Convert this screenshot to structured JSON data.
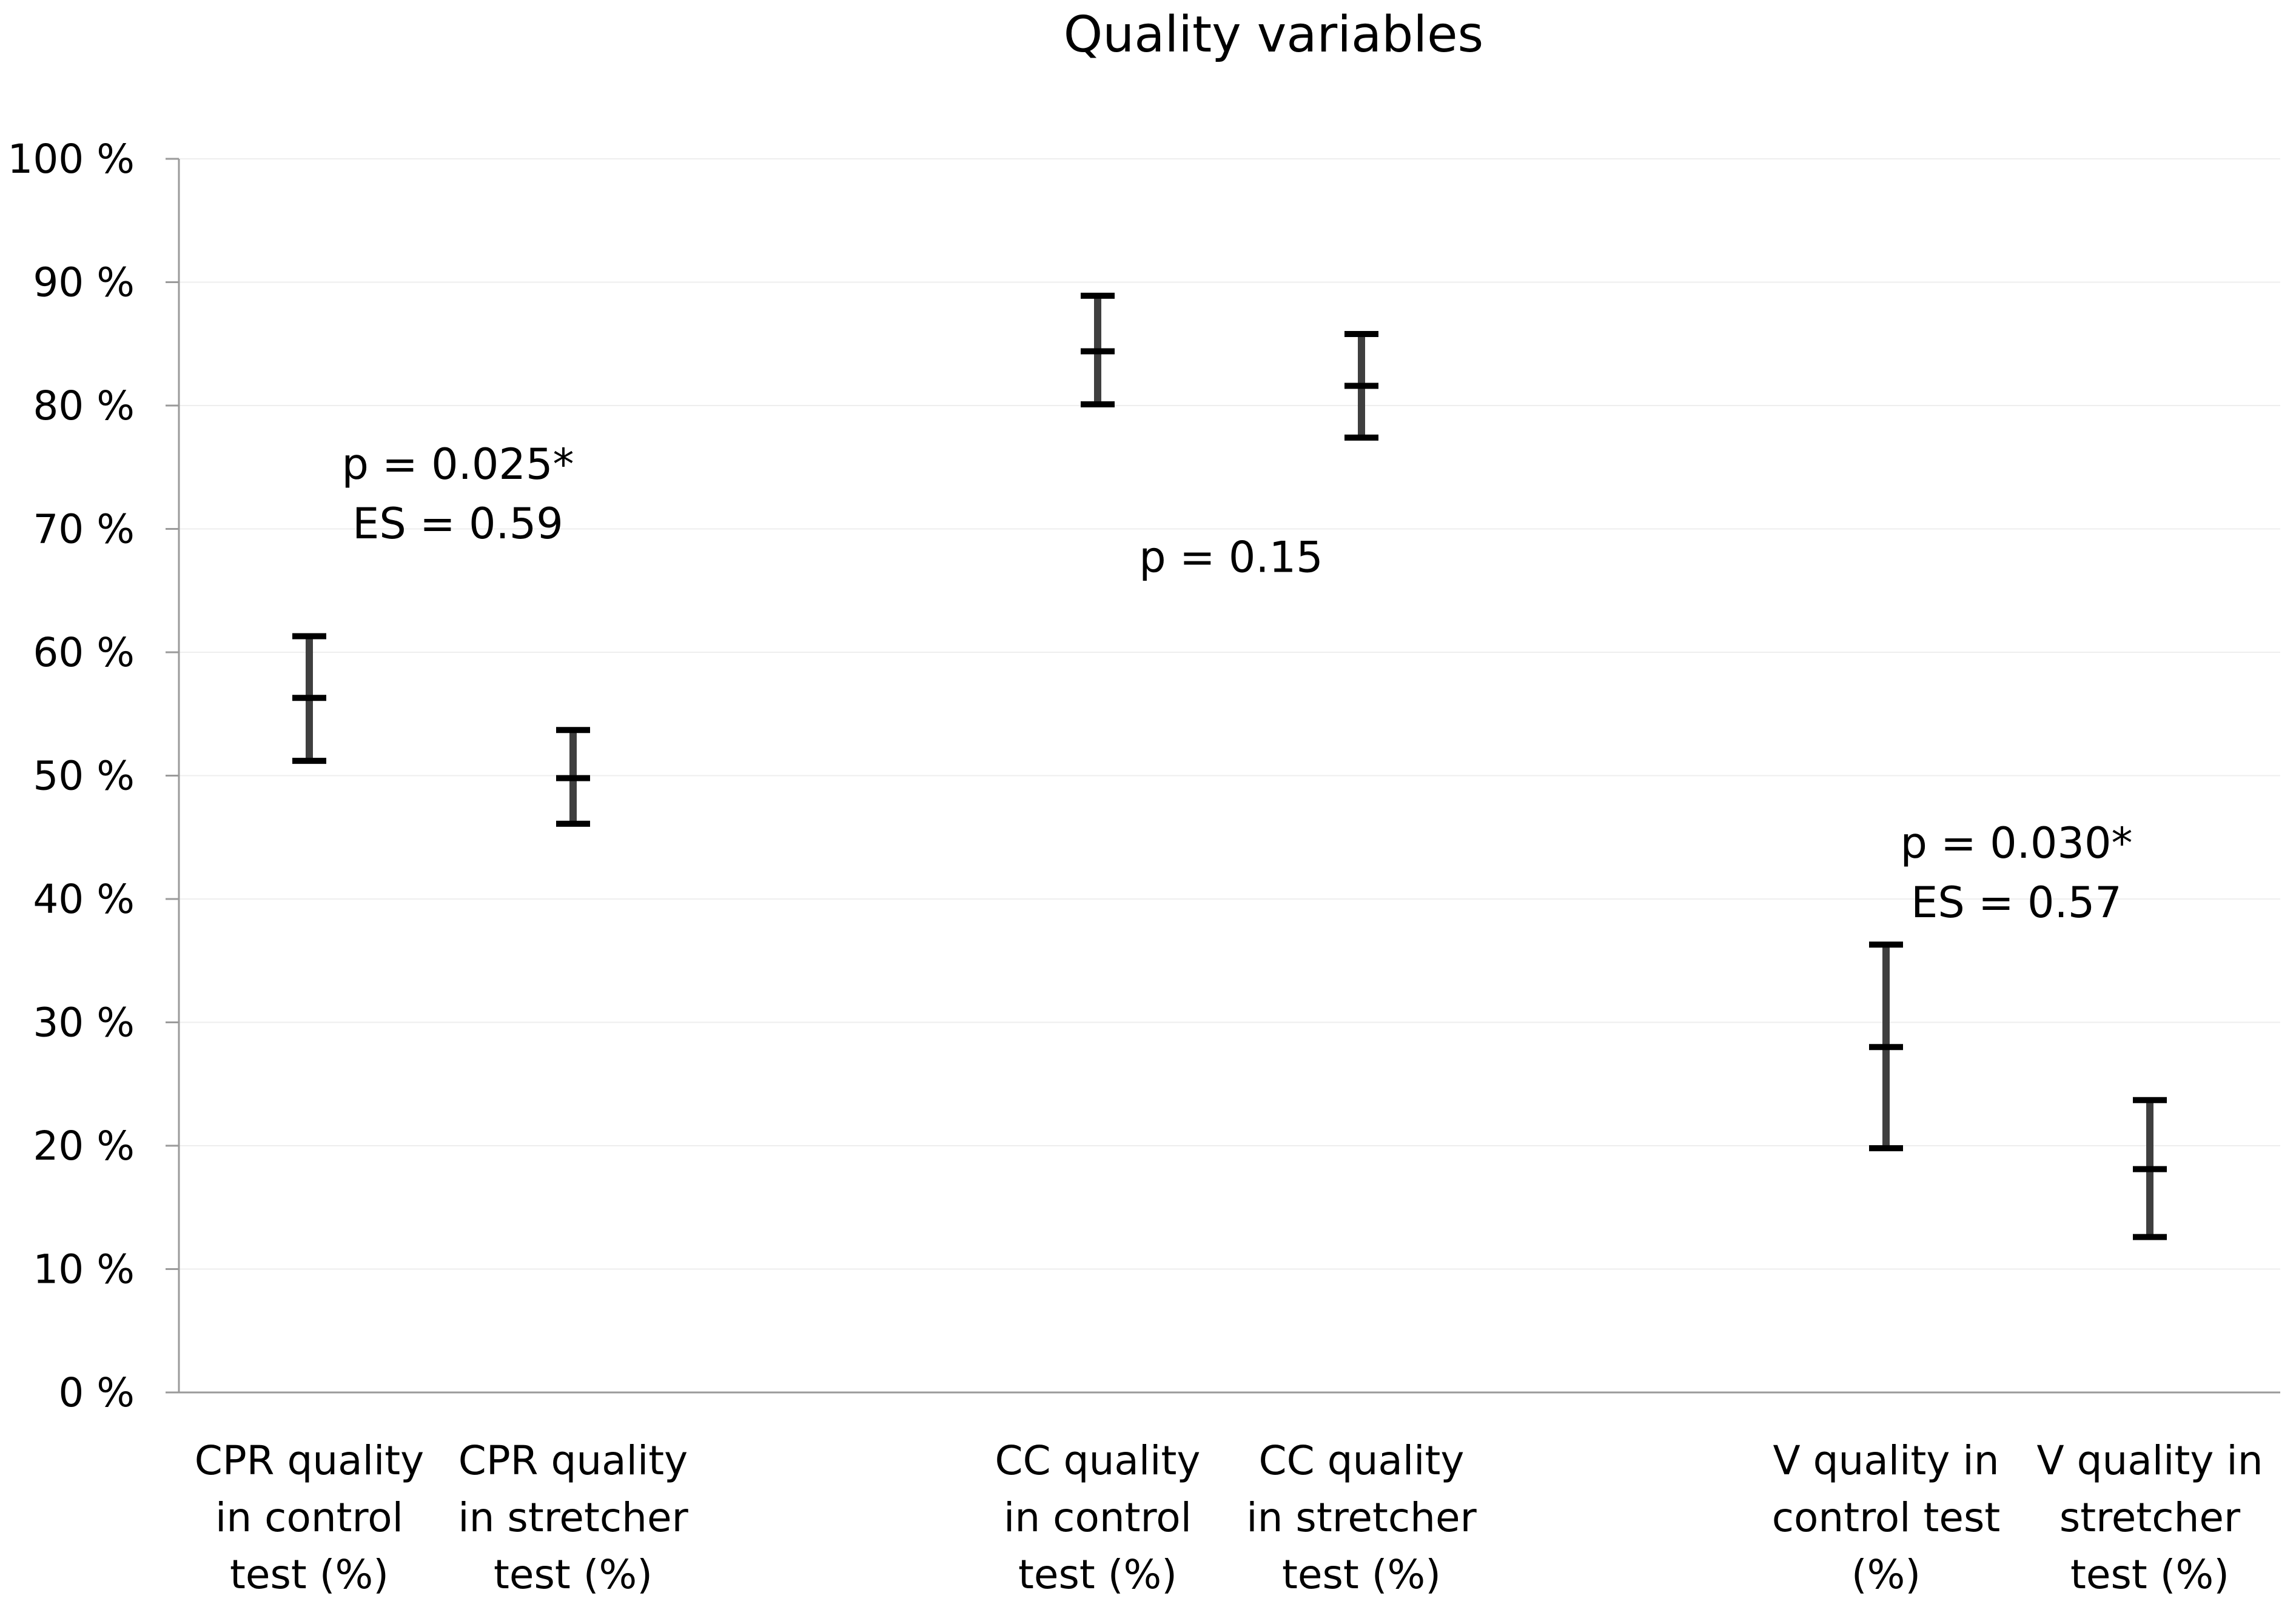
{
  "chart_data": {
    "type": "errorbar",
    "title": "Quality variables",
    "xlabel": "",
    "ylabel": "",
    "ylim": [
      0,
      100
    ],
    "y_ticks": [
      "0 %",
      "10 %",
      "20 %",
      "30 %",
      "40 %",
      "50 %",
      "60 %",
      "70 %",
      "80 %",
      "90 %",
      "100 %"
    ],
    "y_tick_values": [
      0,
      10,
      20,
      30,
      40,
      50,
      60,
      70,
      80,
      90,
      100
    ],
    "grid": true,
    "categories": [
      [
        "CPR quality",
        "in control",
        "test (%)"
      ],
      [
        "CPR quality",
        "in stretcher",
        "test (%)"
      ],
      [
        "CC quality",
        "in control",
        "test (%)"
      ],
      [
        "CC quality",
        "in stretcher",
        "test (%)"
      ],
      [
        "V quality in",
        "control test",
        "(%)"
      ],
      [
        "V quality in",
        "stretcher",
        "test (%)"
      ]
    ],
    "points": [
      {
        "mean": 56.3,
        "low": 51.2,
        "high": 61.3
      },
      {
        "mean": 49.8,
        "low": 46.1,
        "high": 53.7
      },
      {
        "mean": 84.4,
        "low": 80.1,
        "high": 88.9
      },
      {
        "mean": 81.6,
        "low": 77.4,
        "high": 85.8
      },
      {
        "mean": 28.0,
        "low": 19.8,
        "high": 36.3
      },
      {
        "mean": 18.1,
        "low": 12.6,
        "high": 23.7
      }
    ],
    "annotations": [
      {
        "lines": [
          "p = 0.025*",
          "ES = 0.59"
        ],
        "group": 0
      },
      {
        "lines": [
          "p = 0.15"
        ],
        "group": 1
      },
      {
        "lines": [
          "p = 0.030*",
          "ES = 0.57"
        ],
        "group": 2
      }
    ]
  },
  "colors": {
    "bar": "#3f3f3f",
    "axis": "#9a9a9a",
    "grid": "#eeeeee",
    "text": "#000000"
  }
}
